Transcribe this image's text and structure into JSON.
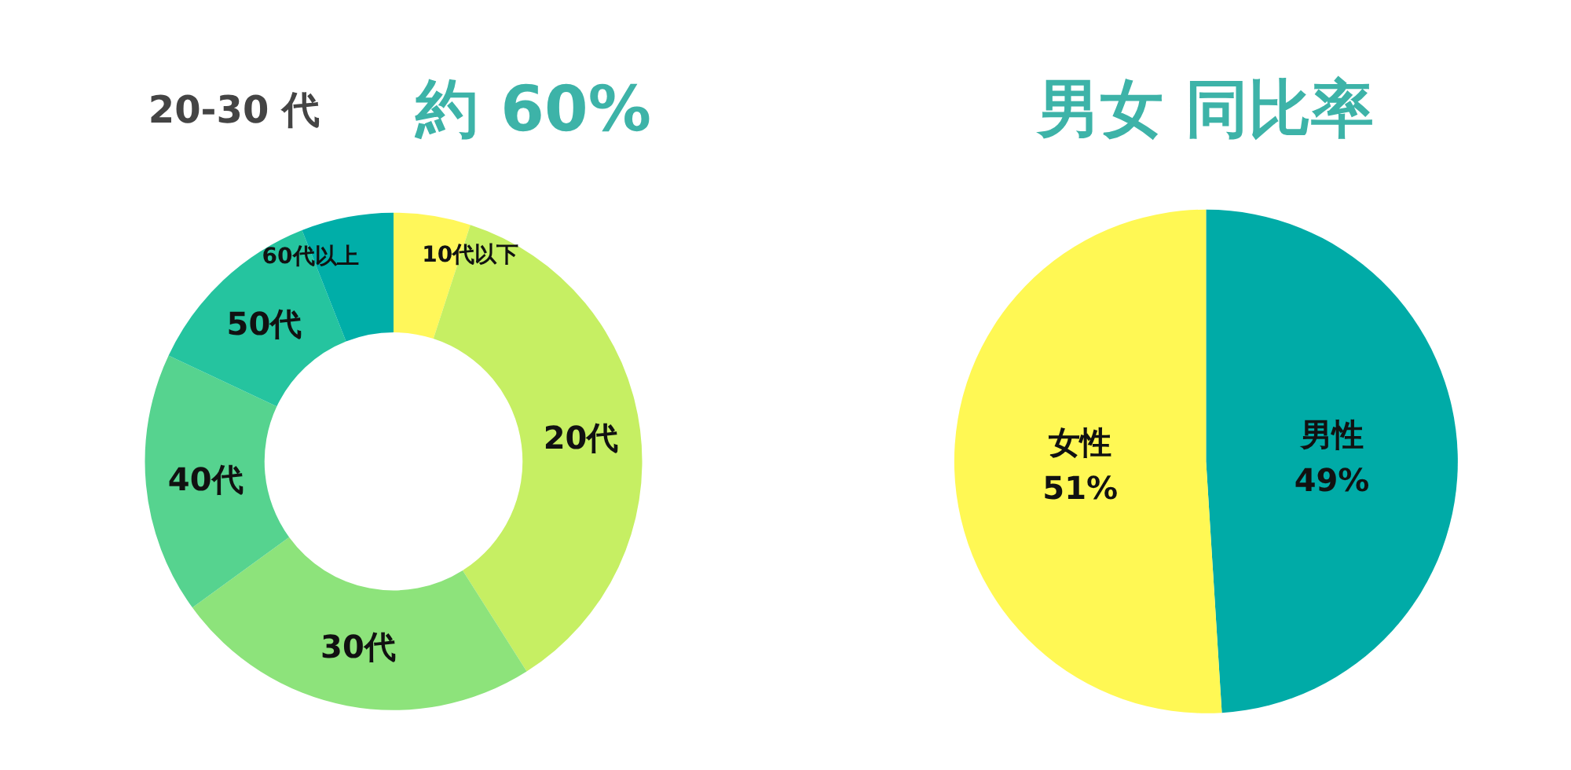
{
  "chart_data": [
    {
      "type": "donut",
      "title": "20-30 代",
      "annotations": [
        "約 60%"
      ],
      "categories": [
        "10代以下",
        "20代",
        "30代",
        "40代",
        "50代",
        "60代以上"
      ],
      "values": [
        5,
        36,
        24,
        17,
        12,
        6
      ],
      "colors": [
        "#fff75a",
        "#c6ef63",
        "#8de37b",
        "#56d38f",
        "#25c49f",
        "#00aea8"
      ]
    },
    {
      "type": "pie",
      "title": "男女 同比率",
      "categories": [
        "男性",
        "女性"
      ],
      "values": [
        49,
        51
      ],
      "colors": [
        "#00aba7",
        "#fff854"
      ],
      "value_labels": [
        "49%",
        "51%"
      ]
    }
  ]
}
